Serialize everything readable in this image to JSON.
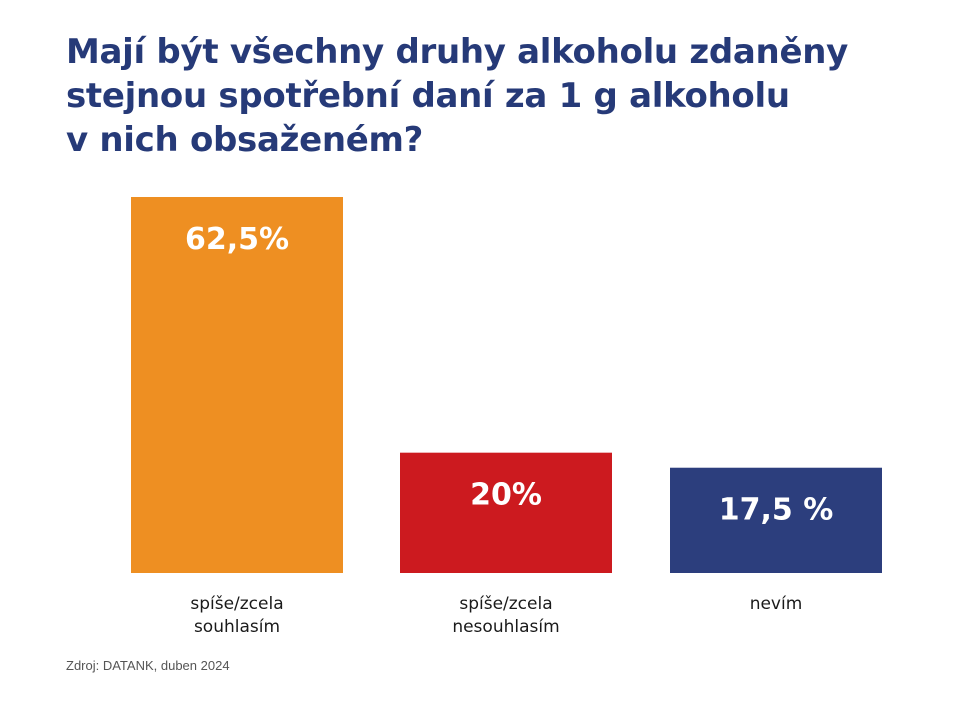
{
  "title": {
    "lines": [
      "Mají být všechny druhy alkoholu zdaněny",
      "stejnou spotřební daní za 1 g alkoholu",
      "v nich obsaženém?"
    ]
  },
  "chart_data": {
    "type": "bar",
    "title": "Mají být všechny druhy alkoholu zdaněny stejnou spotřební daní za 1 g alkoholu v nich obsaženém?",
    "categories": [
      [
        "spíše/zcela",
        "souhlasím"
      ],
      [
        "spíše/zcela",
        "nesouhlasím"
      ],
      [
        "nevím"
      ]
    ],
    "values": [
      62.5,
      20,
      17.5
    ],
    "data_labels": [
      "62,5%",
      "20%",
      "17,5 %"
    ],
    "colors": [
      "#ee8f22",
      "#cc1a1f",
      "#2c3e7d"
    ],
    "ylim": [
      0,
      62.5
    ],
    "grid": false,
    "legend": "none",
    "xlabel": "",
    "ylabel": ""
  },
  "source": "Zdroj: DATANK, duben 2024"
}
